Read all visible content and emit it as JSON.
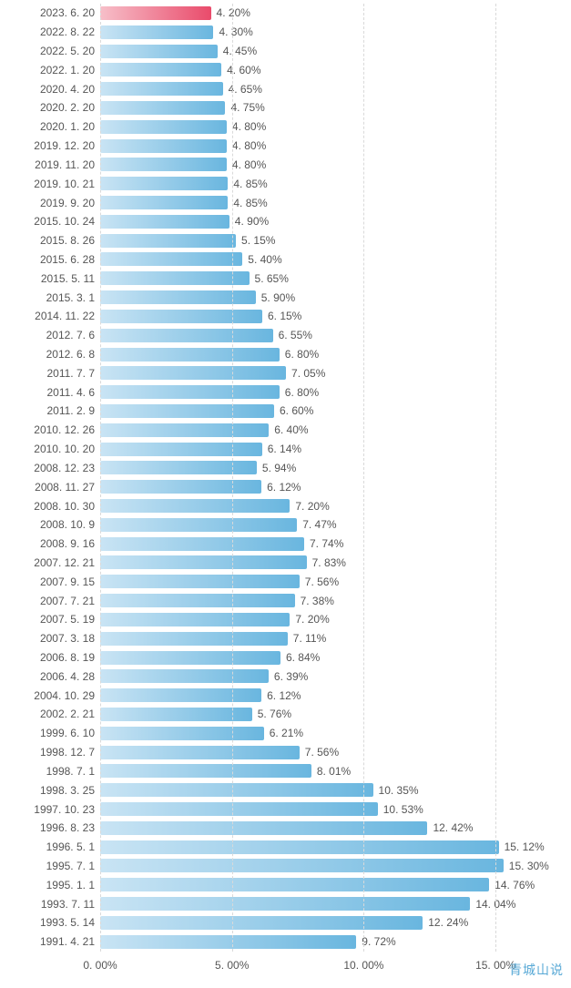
{
  "chart": {
    "type": "bar-horizontal",
    "background_color": "#ffffff",
    "grid_color": "#d9d9d9",
    "label_color": "#555555",
    "label_fontsize": 12,
    "xmin": 0,
    "xmax": 17,
    "xticks": [
      {
        "v": 0,
        "label": "0. 00%"
      },
      {
        "v": 5,
        "label": "5. 00%"
      },
      {
        "v": 10,
        "label": "10. 00%"
      },
      {
        "v": 15,
        "label": "15. 00%"
      }
    ],
    "bar_gradient_normal": {
      "from": "#c9e4f4",
      "to": "#69b6df"
    },
    "bar_gradient_highlight": {
      "from": "#f7bfc9",
      "to": "#e94b6b"
    },
    "rows": [
      {
        "date": "2023. 6. 20",
        "value": 4.2,
        "label": "4. 20%",
        "highlight": true
      },
      {
        "date": "2022. 8. 22",
        "value": 4.3,
        "label": "4. 30%",
        "highlight": false
      },
      {
        "date": "2022. 5. 20",
        "value": 4.45,
        "label": "4. 45%",
        "highlight": false
      },
      {
        "date": "2022. 1. 20",
        "value": 4.6,
        "label": "4. 60%",
        "highlight": false
      },
      {
        "date": "2020. 4. 20",
        "value": 4.65,
        "label": "4. 65%",
        "highlight": false
      },
      {
        "date": "2020. 2. 20",
        "value": 4.75,
        "label": "4. 75%",
        "highlight": false
      },
      {
        "date": "2020. 1. 20",
        "value": 4.8,
        "label": "4. 80%",
        "highlight": false
      },
      {
        "date": "2019. 12. 20",
        "value": 4.8,
        "label": "4. 80%",
        "highlight": false
      },
      {
        "date": "2019. 11. 20",
        "value": 4.8,
        "label": "4. 80%",
        "highlight": false
      },
      {
        "date": "2019. 10. 21",
        "value": 4.85,
        "label": "4. 85%",
        "highlight": false
      },
      {
        "date": "2019. 9. 20",
        "value": 4.85,
        "label": "4. 85%",
        "highlight": false
      },
      {
        "date": "2015. 10. 24",
        "value": 4.9,
        "label": "4. 90%",
        "highlight": false
      },
      {
        "date": "2015. 8. 26",
        "value": 5.15,
        "label": "5. 15%",
        "highlight": false
      },
      {
        "date": "2015. 6. 28",
        "value": 5.4,
        "label": "5. 40%",
        "highlight": false
      },
      {
        "date": "2015. 5. 11",
        "value": 5.65,
        "label": "5. 65%",
        "highlight": false
      },
      {
        "date": "2015. 3. 1",
        "value": 5.9,
        "label": "5. 90%",
        "highlight": false
      },
      {
        "date": "2014. 11. 22",
        "value": 6.15,
        "label": "6. 15%",
        "highlight": false
      },
      {
        "date": "2012. 7. 6",
        "value": 6.55,
        "label": "6. 55%",
        "highlight": false
      },
      {
        "date": "2012. 6. 8",
        "value": 6.8,
        "label": "6. 80%",
        "highlight": false
      },
      {
        "date": "2011. 7. 7",
        "value": 7.05,
        "label": "7. 05%",
        "highlight": false
      },
      {
        "date": "2011. 4. 6",
        "value": 6.8,
        "label": "6. 80%",
        "highlight": false
      },
      {
        "date": "2011. 2. 9",
        "value": 6.6,
        "label": "6. 60%",
        "highlight": false
      },
      {
        "date": "2010. 12. 26",
        "value": 6.4,
        "label": "6. 40%",
        "highlight": false
      },
      {
        "date": "2010. 10. 20",
        "value": 6.14,
        "label": "6. 14%",
        "highlight": false
      },
      {
        "date": "2008. 12. 23",
        "value": 5.94,
        "label": "5. 94%",
        "highlight": false
      },
      {
        "date": "2008. 11. 27",
        "value": 6.12,
        "label": "6. 12%",
        "highlight": false
      },
      {
        "date": "2008. 10. 30",
        "value": 7.2,
        "label": "7. 20%",
        "highlight": false
      },
      {
        "date": "2008. 10. 9",
        "value": 7.47,
        "label": "7. 47%",
        "highlight": false
      },
      {
        "date": "2008. 9. 16",
        "value": 7.74,
        "label": "7. 74%",
        "highlight": false
      },
      {
        "date": "2007. 12. 21",
        "value": 7.83,
        "label": "7. 83%",
        "highlight": false
      },
      {
        "date": "2007. 9. 15",
        "value": 7.56,
        "label": "7. 56%",
        "highlight": false
      },
      {
        "date": "2007. 7. 21",
        "value": 7.38,
        "label": "7. 38%",
        "highlight": false
      },
      {
        "date": "2007. 5. 19",
        "value": 7.2,
        "label": "7. 20%",
        "highlight": false
      },
      {
        "date": "2007. 3. 18",
        "value": 7.11,
        "label": "7. 11%",
        "highlight": false
      },
      {
        "date": "2006. 8. 19",
        "value": 6.84,
        "label": "6. 84%",
        "highlight": false
      },
      {
        "date": "2006. 4. 28",
        "value": 6.39,
        "label": "6. 39%",
        "highlight": false
      },
      {
        "date": "2004. 10. 29",
        "value": 6.12,
        "label": "6. 12%",
        "highlight": false
      },
      {
        "date": "2002. 2. 21",
        "value": 5.76,
        "label": "5. 76%",
        "highlight": false
      },
      {
        "date": "1999. 6. 10",
        "value": 6.21,
        "label": "6. 21%",
        "highlight": false
      },
      {
        "date": "1998. 12. 7",
        "value": 7.56,
        "label": "7. 56%",
        "highlight": false
      },
      {
        "date": "1998. 7. 1",
        "value": 8.01,
        "label": "8. 01%",
        "highlight": false
      },
      {
        "date": "1998. 3. 25",
        "value": 10.35,
        "label": "10. 35%",
        "highlight": false
      },
      {
        "date": "1997. 10. 23",
        "value": 10.53,
        "label": "10. 53%",
        "highlight": false
      },
      {
        "date": "1996. 8. 23",
        "value": 12.42,
        "label": "12. 42%",
        "highlight": false
      },
      {
        "date": "1996. 5. 1",
        "value": 15.12,
        "label": "15. 12%",
        "highlight": false
      },
      {
        "date": "1995. 7. 1",
        "value": 15.3,
        "label": "15. 30%",
        "highlight": false
      },
      {
        "date": "1995. 1. 1",
        "value": 14.76,
        "label": "14. 76%",
        "highlight": false
      },
      {
        "date": "1993. 7. 11",
        "value": 14.04,
        "label": "14. 04%",
        "highlight": false
      },
      {
        "date": "1993. 5. 14",
        "value": 12.24,
        "label": "12. 24%",
        "highlight": false
      },
      {
        "date": "1991. 4. 21",
        "value": 9.72,
        "label": "9. 72%",
        "highlight": false
      }
    ]
  },
  "watermark": "青城山说"
}
